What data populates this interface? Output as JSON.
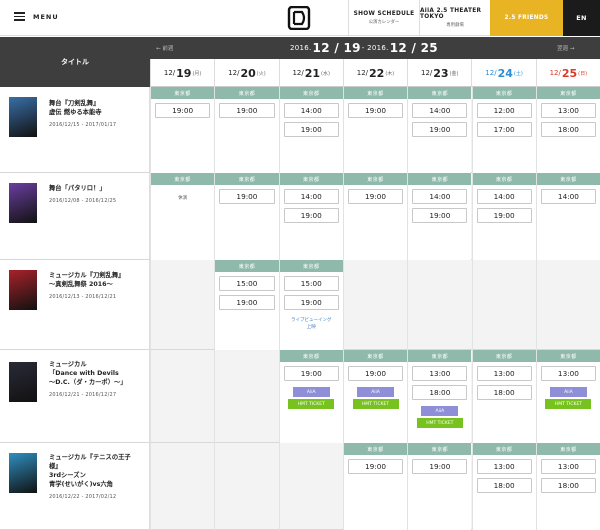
{
  "header": {
    "menu_label": "MENU",
    "nav": [
      {
        "title": "SHOW SCHEDULE",
        "sub": "公演カレンダー"
      },
      {
        "title": "AiiA 2.5 THEATER TOKYO",
        "sub": "専用劇場"
      },
      {
        "title": "2.5 FRIENDS",
        "sub": ""
      },
      {
        "title": "EN",
        "sub": ""
      }
    ]
  },
  "calendar": {
    "prev_label": "← 前週",
    "next_label": "翌週 →",
    "range": {
      "year_from": "2016.",
      "from": "12 / 19",
      "sep": " - 2016. ",
      "to": "12 / 25"
    },
    "title_header": "タイトル",
    "days": [
      {
        "md": "12/",
        "d": "19",
        "w": "(月)",
        "type": "weekday"
      },
      {
        "md": "12/",
        "d": "20",
        "w": "(火)",
        "type": "weekday"
      },
      {
        "md": "12/",
        "d": "21",
        "w": "(水)",
        "type": "weekday"
      },
      {
        "md": "12/",
        "d": "22",
        "w": "(木)",
        "type": "weekday"
      },
      {
        "md": "12/",
        "d": "23",
        "w": "(金)",
        "type": "weekday"
      },
      {
        "md": "12/",
        "d": "24",
        "w": "(土)",
        "type": "sat"
      },
      {
        "md": "12/",
        "d": "25",
        "w": "(日)",
        "type": "sun"
      }
    ]
  },
  "shows": [
    {
      "title_lines": [
        "舞台『刀剣乱舞』",
        "虚伝 燃ゆる本能寺"
      ],
      "dates": "2016/12/15  -  2017/01/17",
      "thumb_color": "#3a6fa8",
      "days": [
        {
          "venue": "東京都",
          "times": [
            "19:00"
          ]
        },
        {
          "venue": "東京都",
          "times": [
            "19:00"
          ]
        },
        {
          "venue": "東京都",
          "times": [
            "14:00",
            "19:00"
          ]
        },
        {
          "venue": "東京都",
          "times": [
            "19:00"
          ]
        },
        {
          "venue": "東京都",
          "times": [
            "14:00",
            "19:00"
          ]
        },
        {
          "venue": "東京都",
          "times": [
            "12:00",
            "17:00"
          ]
        },
        {
          "venue": "東京都",
          "times": [
            "13:00",
            "18:00"
          ]
        }
      ]
    },
    {
      "title_lines": [
        "舞台「パタリロ！」"
      ],
      "dates": "2016/12/08  -  2016/12/25",
      "thumb_color": "#6a3fa0",
      "days": [
        {
          "venue": "東京都",
          "times": [],
          "off": "休演"
        },
        {
          "venue": "東京都",
          "times": [
            "19:00"
          ]
        },
        {
          "venue": "東京都",
          "times": [
            "14:00",
            "19:00"
          ]
        },
        {
          "venue": "東京都",
          "times": [
            "19:00"
          ]
        },
        {
          "venue": "東京都",
          "times": [
            "14:00",
            "19:00"
          ]
        },
        {
          "venue": "東京都",
          "times": [
            "14:00",
            "19:00"
          ]
        },
        {
          "venue": "東京都",
          "times": [
            "14:00"
          ]
        }
      ]
    },
    {
      "title_lines": [
        "ミュージカル『刀剣乱舞』",
        "〜真剣乱舞祭 2016〜"
      ],
      "dates": "2016/12/13  -  2016/12/21",
      "thumb_color": "#a8222a",
      "days": [
        null,
        {
          "venue": "東京都",
          "times": [
            "15:00",
            "19:00"
          ]
        },
        {
          "venue": "東京都",
          "times": [
            "15:00",
            "19:00"
          ],
          "note": [
            "ライブビューイング",
            "上映"
          ]
        },
        null,
        null,
        null,
        null
      ]
    },
    {
      "title_lines": [
        "ミュージカル",
        "「Dance with Devils",
        "〜D.C.（ダ・カーポ）〜」"
      ],
      "dates": "2016/12/21  -  2016/12/27",
      "thumb_color": "#2a2a38",
      "days": [
        null,
        null,
        {
          "venue": "東京都",
          "times": [
            "19:00"
          ],
          "aia": "AiiA",
          "hmt": "HMT TICKET"
        },
        {
          "venue": "東京都",
          "times": [
            "19:00"
          ],
          "aia": "AiiA",
          "hmt": "HMT TICKET"
        },
        {
          "venue": "東京都",
          "times": [
            "13:00",
            "18:00"
          ],
          "aia": "AiiA",
          "hmt": "HMT TICKET"
        },
        {
          "venue": "東京都",
          "times": [
            "13:00",
            "18:00"
          ]
        },
        {
          "venue": "東京都",
          "times": [
            "13:00"
          ],
          "aia": "AiiA",
          "hmt": "HMT TICKET"
        }
      ]
    },
    {
      "title_lines": [
        "ミュージカル『テニスの王子",
        "様』",
        "3rdシーズン",
        "青学(せいがく)vs六角"
      ],
      "dates": "2016/12/22  -  2017/02/12",
      "thumb_color": "#2f8fc0",
      "days": [
        null,
        null,
        null,
        {
          "venue": "東京都",
          "times": [
            "19:00"
          ]
        },
        {
          "venue": "東京都",
          "times": [
            "19:00"
          ]
        },
        {
          "venue": "東京都",
          "times": [
            "13:00",
            "18:00"
          ]
        },
        {
          "venue": "東京都",
          "times": [
            "13:00",
            "18:00"
          ]
        }
      ]
    }
  ]
}
